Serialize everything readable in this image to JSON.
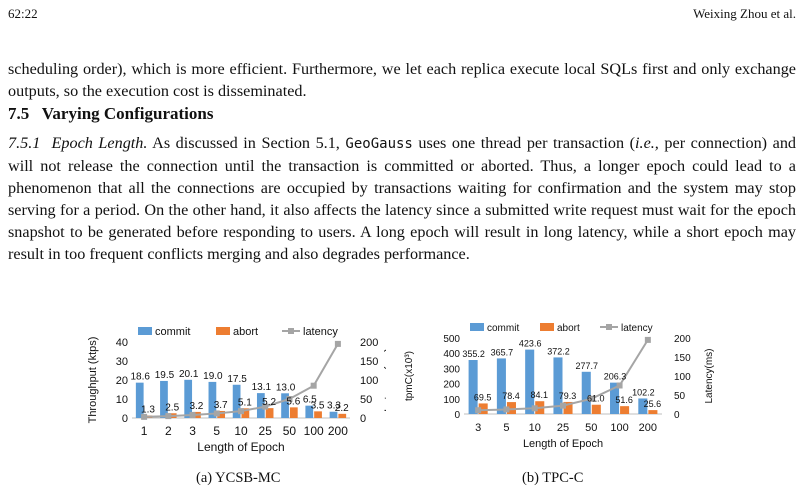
{
  "header": {
    "page": "62:22",
    "authors": "Weixing Zhou et al."
  },
  "para1": "scheduling order), which is more efficient. Furthermore, we let each replica execute local SQLs first and only exchange outputs, so the execution cost is disseminated.",
  "section": {
    "number": "7.5",
    "title": "Varying Configurations"
  },
  "para2": {
    "sub_number": "7.5.1",
    "sub_title": "Epoch Length.",
    "t1": " As discussed in Section 5.1, ",
    "system": "GeoGauss",
    "t2": " uses one thread per transaction (",
    "ie": "i.e.,",
    "t3": " per connection) and will not release the connection until the transaction is committed or aborted. Thus, a longer epoch could lead to a phenomenon that all the connections are occupied by transactions waiting for confirmation and the system may stop serving for a period. On the other hand, it also affects the latency since a submitted write request must wait for the epoch snapshot to be generated before responding to users. A long epoch will result in long latency, while a short epoch may result in too frequent conflicts merging and also degrades performance."
  },
  "captions": {
    "a": "(a) YCSB-MC",
    "b": "(b) TPC-C"
  },
  "colors": {
    "commit": "#5b9bd5",
    "abort": "#ed7d31",
    "latency": "#a5a5a5"
  },
  "chart_data": [
    {
      "type": "bar",
      "title": "",
      "caption": "(a) YCSB-MC",
      "categories": [
        "1",
        "2",
        "3",
        "5",
        "10",
        "25",
        "50",
        "100",
        "200"
      ],
      "series": [
        {
          "name": "commit",
          "kind": "bar",
          "axis": "left",
          "values": [
            18.6,
            19.5,
            20.1,
            19.0,
            17.5,
            13.1,
            13.0,
            6.5,
            3.3
          ]
        },
        {
          "name": "abort",
          "kind": "bar",
          "axis": "left",
          "values": [
            1.3,
            2.5,
            3.2,
            3.7,
            5.1,
            5.2,
            5.6,
            3.5,
            2.2
          ]
        },
        {
          "name": "latency",
          "kind": "line",
          "axis": "right",
          "values": [
            3,
            5,
            8,
            12,
            18,
            30,
            50,
            85,
            195
          ]
        }
      ],
      "labels_commit": [
        "18.6",
        "19.5",
        "20.1",
        "19.0",
        "17.5",
        "13.1",
        "13.0",
        "6.5",
        "3.3"
      ],
      "labels_abort": [
        "1.3",
        "2.5",
        "3.2",
        "3.7",
        "5.1",
        "5.2",
        "5.6",
        "3.5",
        "2.2"
      ],
      "xlabel": "Length of Epoch",
      "ylabel": "Throughput (ktps)",
      "y2label": "Latency (ms)",
      "ylim": [
        0,
        40
      ],
      "yticks": [
        "0",
        "10",
        "20",
        "30",
        "40"
      ],
      "y2lim": [
        0,
        200
      ],
      "y2ticks": [
        "0",
        "50",
        "100",
        "150",
        "200"
      ],
      "legend": "top",
      "grid": false
    },
    {
      "type": "bar",
      "title": "",
      "caption": "(b) TPC-C",
      "categories": [
        "3",
        "5",
        "10",
        "25",
        "50",
        "100",
        "200"
      ],
      "series": [
        {
          "name": "commit",
          "kind": "bar",
          "axis": "left",
          "values": [
            355.2,
            365.7,
            423.6,
            372.2,
            277.7,
            206.3,
            102.2
          ]
        },
        {
          "name": "abort",
          "kind": "bar",
          "axis": "left",
          "values": [
            69.5,
            78.4,
            84.1,
            79.3,
            61.0,
            51.6,
            25.6
          ]
        },
        {
          "name": "latency",
          "kind": "line",
          "axis": "right",
          "values": [
            10,
            12,
            15,
            22,
            40,
            75,
            195
          ]
        }
      ],
      "labels_commit": [
        "355.2",
        "365.7",
        "423.6",
        "372.2",
        "277.7",
        "206.3",
        "102.2"
      ],
      "labels_abort": [
        "69.5",
        "78.4",
        "84.1",
        "79.3",
        "61.0",
        "51.6",
        "25.6"
      ],
      "xlabel": "Length of Epoch",
      "ylabel": "tpmC(x10³)",
      "y2label": "Latency(ms)",
      "ylim": [
        0,
        500
      ],
      "yticks": [
        "0",
        "100",
        "200",
        "300",
        "400",
        "500"
      ],
      "y2lim": [
        0,
        200
      ],
      "y2ticks": [
        "0",
        "50",
        "100",
        "150",
        "200"
      ],
      "legend": "top",
      "grid": false
    }
  ]
}
